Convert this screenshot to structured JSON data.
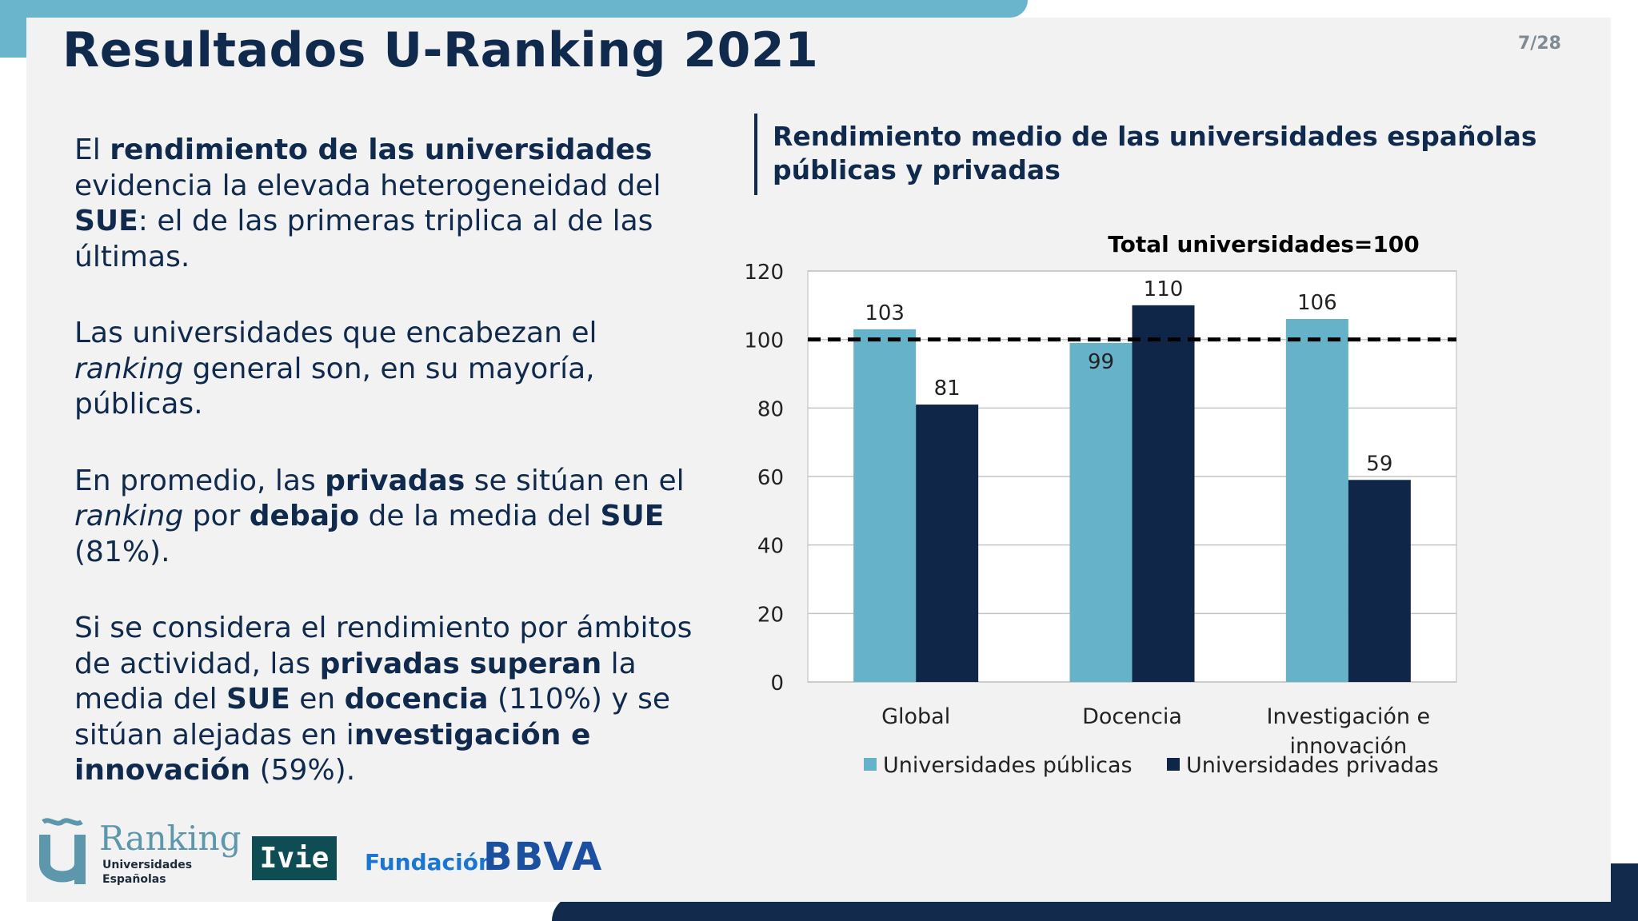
{
  "slide": {
    "title": "Resultados U-Ranking 2021",
    "page": "7/28"
  },
  "bullets": {
    "b1": [
      {
        "t": "El ",
        "s": ""
      },
      {
        "t": "rendimiento de las universidades",
        "s": "b"
      },
      {
        "t": " evidencia la elevada heterogeneidad del ",
        "s": ""
      },
      {
        "t": "SUE",
        "s": "b"
      },
      {
        "t": ": el de las primeras triplica al de las últimas.",
        "s": ""
      }
    ],
    "b2": [
      {
        "t": "Las universidades que encabezan el ",
        "s": ""
      },
      {
        "t": "ranking",
        "s": "i"
      },
      {
        "t": " general son, en su mayoría, públicas.",
        "s": ""
      }
    ],
    "b3": [
      {
        "t": "En promedio, las ",
        "s": ""
      },
      {
        "t": "privadas",
        "s": "b"
      },
      {
        "t": " se sitúan en el ",
        "s": ""
      },
      {
        "t": "ranking",
        "s": "i"
      },
      {
        "t": " por ",
        "s": ""
      },
      {
        "t": "debajo",
        "s": "b"
      },
      {
        "t": " de la media del ",
        "s": ""
      },
      {
        "t": "SUE",
        "s": "b"
      },
      {
        "t": " (81%).",
        "s": ""
      }
    ],
    "b4": [
      {
        "t": "Si se considera el rendimiento por ámbitos de actividad, las ",
        "s": ""
      },
      {
        "t": "privadas superan",
        "s": "b"
      },
      {
        "t": " la media del ",
        "s": ""
      },
      {
        "t": "SUE",
        "s": "b"
      },
      {
        "t": " en ",
        "s": ""
      },
      {
        "t": "docencia",
        "s": "b"
      },
      {
        "t": " (110%) y se sitúan alejadas en i",
        "s": ""
      },
      {
        "t": "nvestigación e innovación",
        "s": "b"
      },
      {
        "t": " (59%).",
        "s": ""
      }
    ]
  },
  "chart_heading": "Rendimiento medio de las universidades españolas públicas y privadas",
  "chart_data": {
    "type": "bar",
    "title": "Total universidades=100",
    "categories": [
      "Global",
      "Docencia",
      "Investigación e innovación"
    ],
    "series": [
      {
        "name": "Universidades públicas",
        "values": [
          103,
          99,
          106
        ],
        "color": "#66b2c9"
      },
      {
        "name": "Universidades privadas",
        "values": [
          81,
          110,
          59
        ],
        "color": "#0f2649"
      }
    ],
    "ylim": [
      0,
      120
    ],
    "yticks": [
      0,
      20,
      40,
      60,
      80,
      100,
      120
    ],
    "reference_line": {
      "value": 100,
      "style": "dashed",
      "color": "#000000"
    },
    "grid": true,
    "legend": "bottom",
    "data_labels": true
  },
  "logos": {
    "ranking": "Ranking",
    "ranking_sub": "Universidades Españolas",
    "ivie": "Ivie",
    "fundacion": "Fundación",
    "bbva": "BBVA"
  },
  "colors": {
    "accent_light": "#6ab4cc",
    "accent_dark": "#122a4c",
    "text": "#0f2a4c"
  }
}
